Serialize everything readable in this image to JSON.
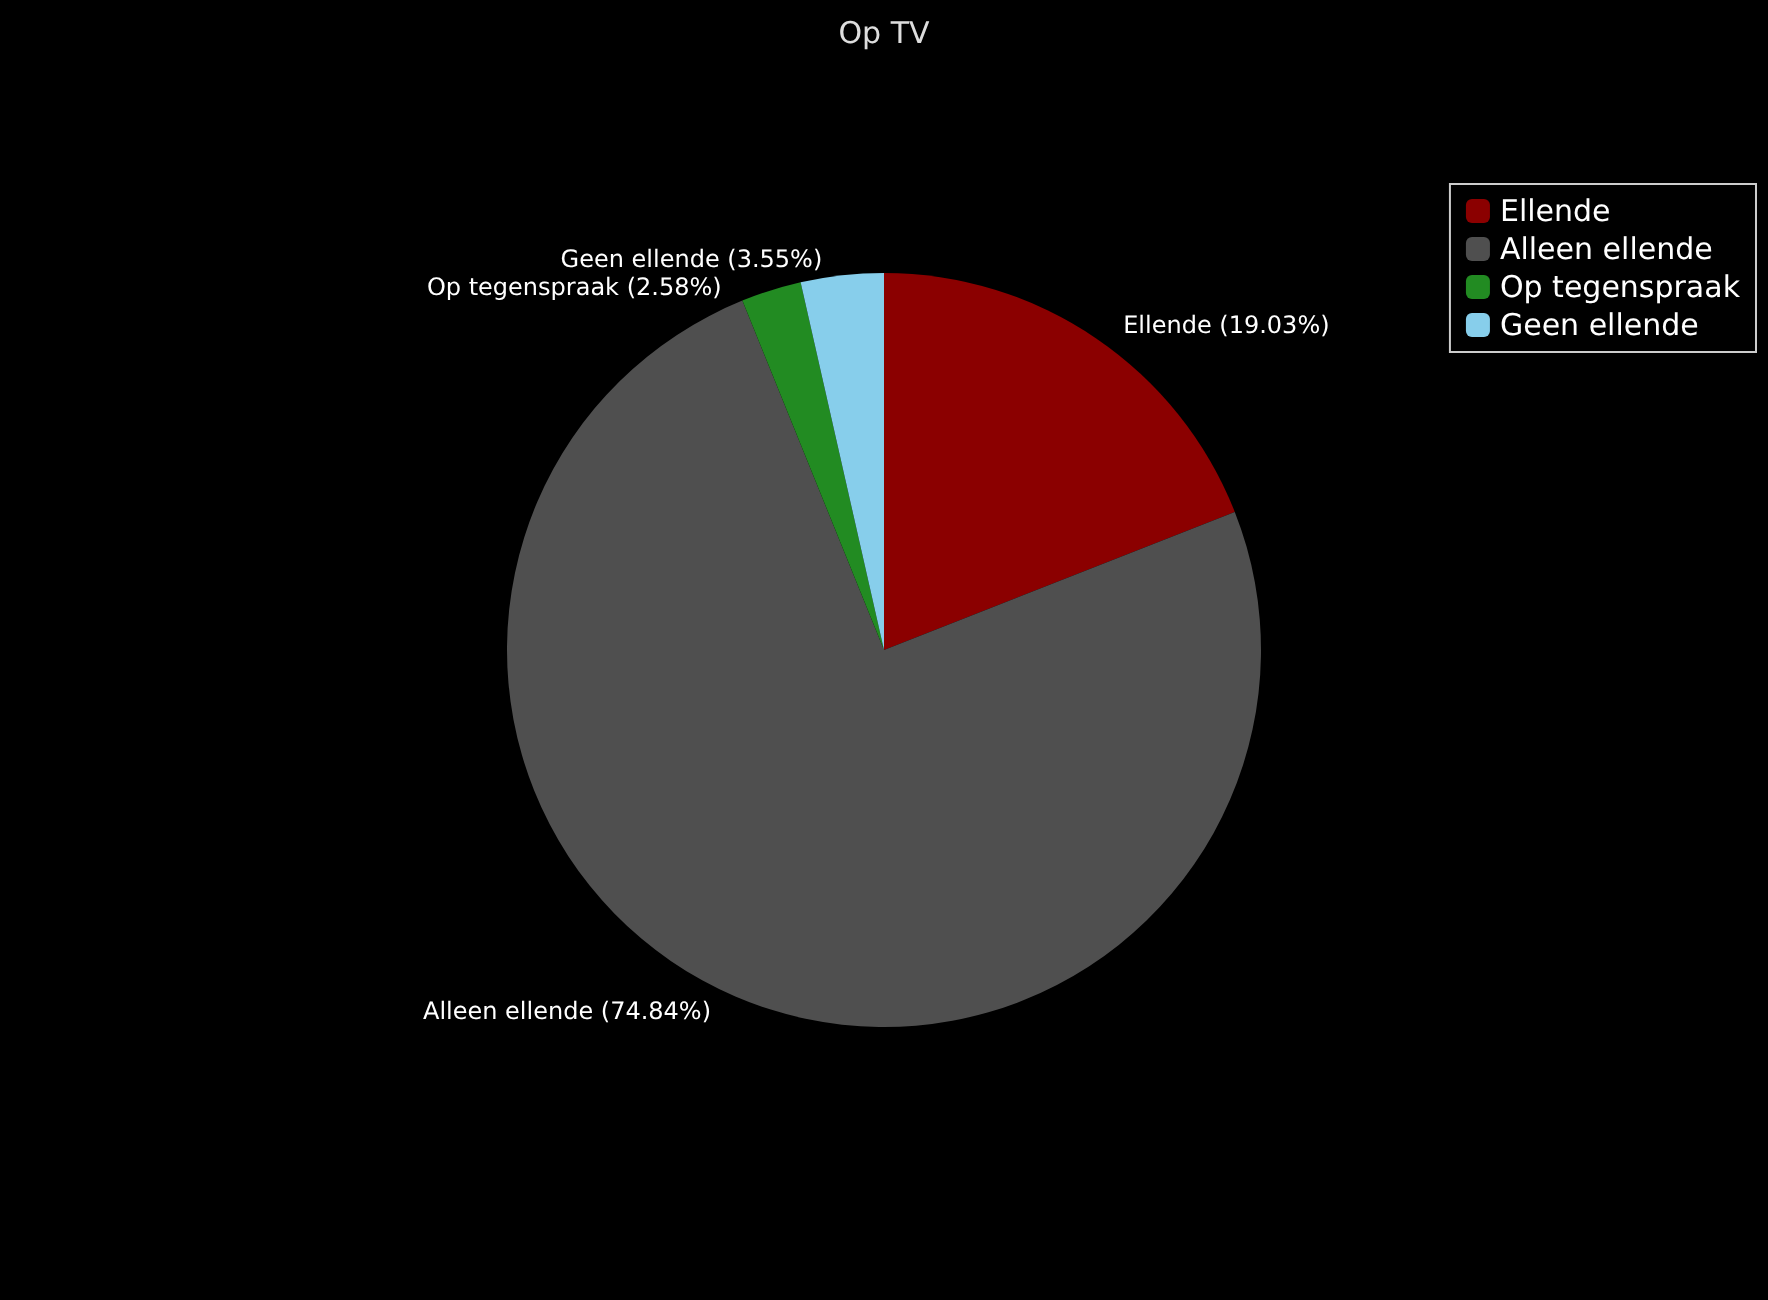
{
  "chart_data": {
    "type": "pie",
    "title": "Op TV",
    "categories": [
      "Ellende",
      "Alleen ellende",
      "Op tegenspraak",
      "Geen ellende"
    ],
    "values": [
      19.03,
      74.84,
      2.58,
      3.55
    ],
    "colors": [
      "#8b0000",
      "#4f4f4f",
      "#228b22",
      "#87ceeb"
    ],
    "value_labels": [
      "Ellende (19.03%)",
      "Alleen ellende (74.84%)",
      "Op tegenspraak (2.58%)",
      "Geen ellende (3.55%)"
    ],
    "legend": "top right"
  }
}
